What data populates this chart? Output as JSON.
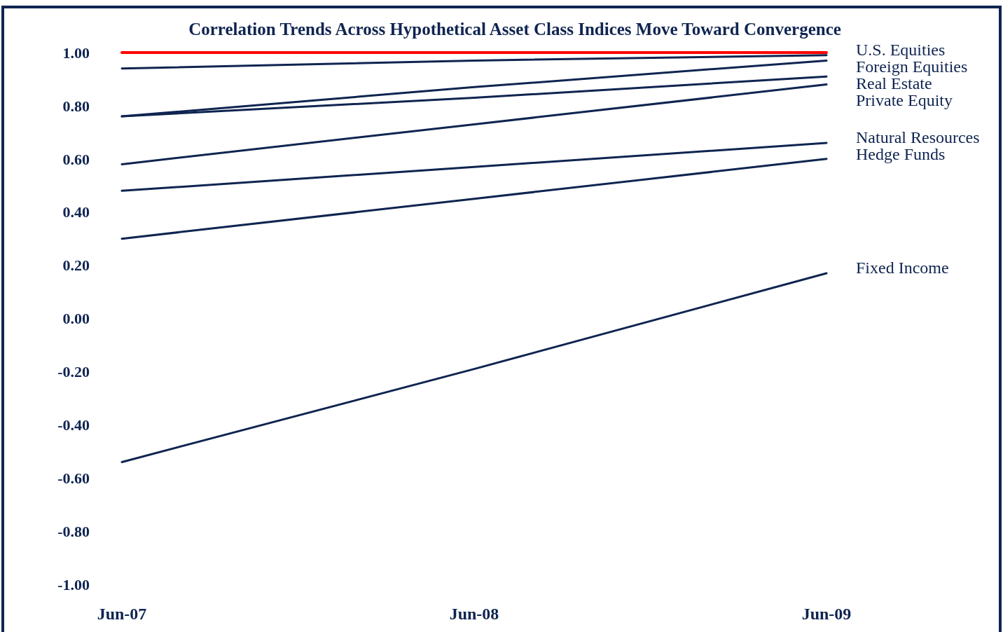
{
  "chart_data": {
    "type": "line",
    "title": "Correlation Trends Across Hypothetical Asset Class Indices Move Toward Convergence",
    "categories": [
      "Jun-07",
      "Jun-08",
      "Jun-09"
    ],
    "ylim": [
      -1,
      1
    ],
    "yticks": [
      {
        "value": 1,
        "label": "1.00"
      },
      {
        "value": 0.8,
        "label": "0.80"
      },
      {
        "value": 0.6,
        "label": "0.60"
      },
      {
        "value": 0.4,
        "label": "0.40"
      },
      {
        "value": 0.2,
        "label": "0.20"
      },
      {
        "value": 0,
        "label": "0.00"
      },
      {
        "value": -0.2,
        "label": "-0.20"
      },
      {
        "value": -0.4,
        "label": "-0.40"
      },
      {
        "value": -0.6,
        "label": "-0.60"
      },
      {
        "value": -0.8,
        "label": "-0.80"
      },
      {
        "value": -1,
        "label": "-1.00"
      }
    ],
    "grid": false,
    "marker": "none",
    "line_style": "solid",
    "series": [
      {
        "color": "#ff0000",
        "values": [
          1.0,
          1.0,
          1.0
        ]
      },
      {
        "name": "U.S. Equities",
        "color": "#0f2450",
        "values": [
          0.94,
          0.97,
          0.99
        ]
      },
      {
        "name": "Foreign Equities",
        "color": "#0f2450",
        "values": [
          0.76,
          0.87,
          0.97
        ]
      },
      {
        "name": "Real Estate",
        "color": "#0f2450",
        "values": [
          0.76,
          0.83,
          0.91
        ]
      },
      {
        "name": "Private Equity",
        "color": "#0f2450",
        "values": [
          0.58,
          0.73,
          0.88
        ]
      },
      {
        "name": "Natural Resources",
        "color": "#0f2450",
        "values": [
          0.48,
          0.57,
          0.66
        ]
      },
      {
        "name": "Hedge Funds",
        "color": "#0f2450",
        "values": [
          0.3,
          0.45,
          0.6
        ]
      },
      {
        "name": "Fixed Income",
        "color": "#0f2450",
        "values": [
          -0.54,
          -0.19,
          0.17
        ]
      }
    ]
  }
}
